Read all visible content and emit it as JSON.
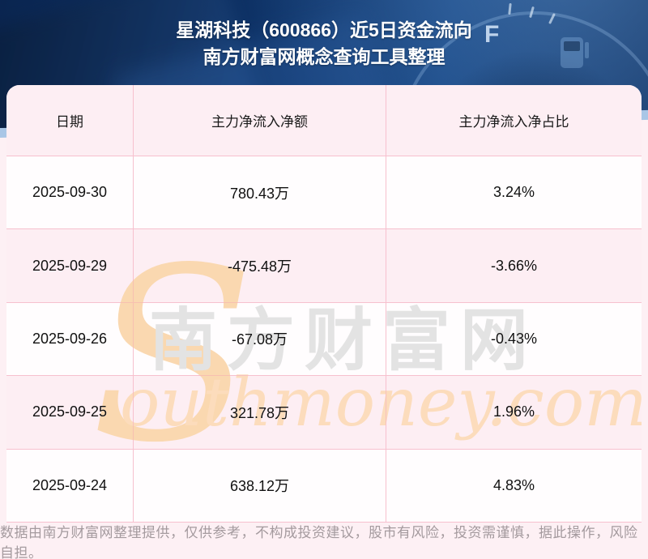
{
  "header": {
    "title_line1": "星湖科技（600866）近5日资金流向",
    "title_line2": "南方财富网概念查询工具整理",
    "gauge_label": "F"
  },
  "chart_data": {
    "type": "table",
    "title": "星湖科技（600866）近5日资金流向",
    "subtitle": "南方财富网概念查询工具整理",
    "columns": [
      "日期",
      "主力净流入净额",
      "主力净流入净占比"
    ],
    "rows": [
      [
        "2025-09-30",
        "780.43万",
        "3.24%"
      ],
      [
        "2025-09-29",
        "-475.48万",
        "-3.66%"
      ],
      [
        "2025-09-26",
        "-67.08万",
        "-0.43%"
      ],
      [
        "2025-09-25",
        "321.78万",
        "1.96%"
      ],
      [
        "2025-09-24",
        "638.12万",
        "4.83%"
      ]
    ],
    "units": {
      "主力净流入净额": "万",
      "主力净流入净占比": "%"
    }
  },
  "watermark": {
    "logo_s": "S",
    "site_cn": "南方财富网",
    "site_en": "outhmoney.com"
  },
  "footer": {
    "disclaimer": "数据由南方财富网整理提供，仅供参考，不构成投资建议，股市有风险，投资需谨慎，据此操作，风险自担。"
  },
  "colors": {
    "hero_navy": "#0d3063",
    "hero_wedge_blue": "#a9c6e6",
    "page_bg": "#fdf0f4",
    "row_pink": "#fdeef3",
    "row_white": "#fffdfe",
    "grid_line": "#f7c0ce",
    "cell_text": "#111111",
    "title_text": "#ffffff",
    "footer_text": "#a49a9e",
    "watermark_gray": "#e3e3e3",
    "watermark_peach": "#fcdcbc"
  }
}
